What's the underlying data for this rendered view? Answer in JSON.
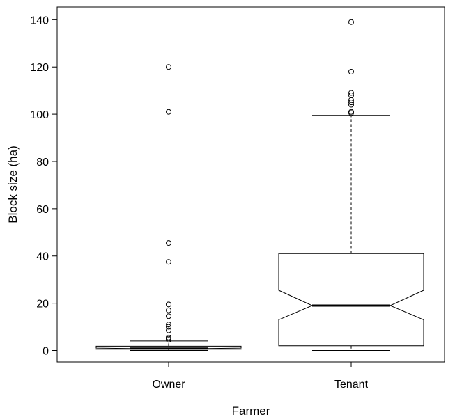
{
  "chart_data": {
    "type": "boxplot",
    "xlabel": "Farmer",
    "ylabel": "Block size (ha)",
    "ylim": [
      -6,
      145
    ],
    "yticks": [
      0,
      20,
      40,
      60,
      80,
      100,
      120,
      140
    ],
    "notched": true,
    "grid": false,
    "categories": [
      "Owner",
      "Tenant"
    ],
    "boxes": [
      {
        "name": "Owner",
        "whisker_low": 0,
        "q1": 0.5,
        "notch_low": 0.6,
        "median": 0.8,
        "notch_high": 1.0,
        "q3": 1.8,
        "whisker_high": 4,
        "outliers": [
          120,
          101,
          45.5,
          37.5,
          19.5,
          17,
          14.5,
          11,
          10,
          8.5,
          5.5,
          5,
          4.5
        ]
      },
      {
        "name": "Tenant",
        "whisker_low": 0,
        "q1": 2,
        "notch_low": 13,
        "median": 19,
        "notch_high": 25.5,
        "q3": 41,
        "whisker_high": 99.5,
        "outliers": [
          139,
          118,
          109,
          108,
          106,
          105,
          104,
          101,
          100.5
        ]
      }
    ]
  }
}
